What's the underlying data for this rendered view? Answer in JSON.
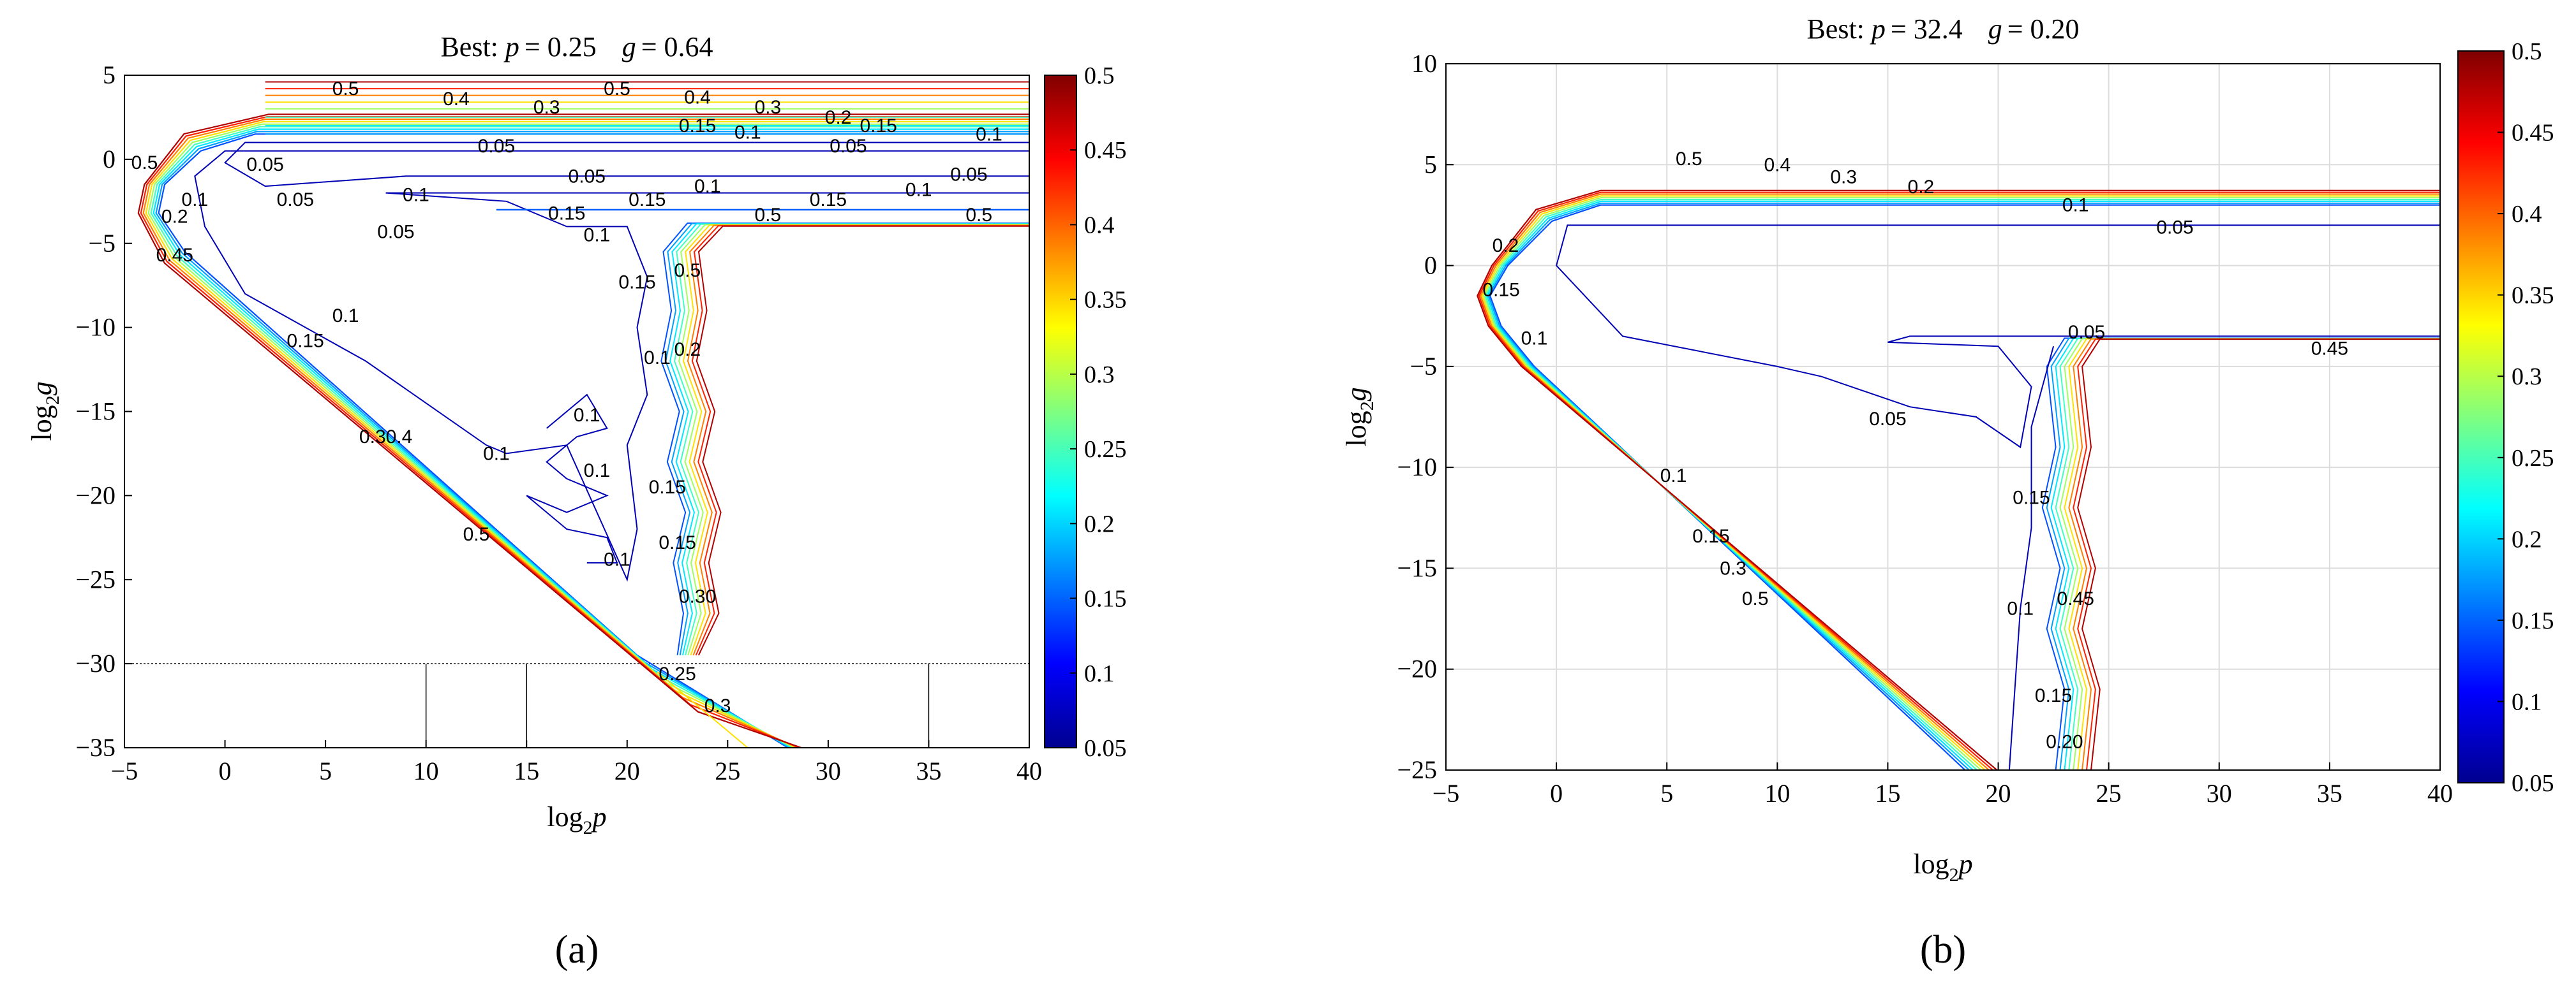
{
  "chart_data": [
    {
      "type": "contour",
      "panel": "(a)",
      "title_prefix": "Best: ",
      "title_p_label": "p",
      "title_p_value": "= 0.25",
      "title_g_label": "g",
      "title_g_value": "= 0.64",
      "xlabel": "log₂p",
      "ylabel": "log₂g",
      "xlim": [
        -5,
        40
      ],
      "ylim": [
        -35,
        5
      ],
      "xticks": [
        -5,
        0,
        5,
        10,
        15,
        20,
        25,
        30,
        35,
        40
      ],
      "yticks": [
        -35,
        -30,
        -25,
        -20,
        -15,
        -10,
        -5,
        0,
        5
      ],
      "grid": false,
      "colorbar": {
        "min": 0.05,
        "max": 0.5,
        "ticks": [
          "0.5",
          "0.45",
          "0.4",
          "0.35",
          "0.3",
          "0.25",
          "0.2",
          "0.15",
          "0.1",
          "0.05"
        ]
      },
      "contour_levels": [
        0.05,
        0.1,
        0.15,
        0.2,
        0.25,
        0.3,
        0.35,
        0.4,
        0.45,
        0.5
      ],
      "contour_labels": [
        {
          "text": "0.5",
          "x": 6,
          "y": 4.2
        },
        {
          "text": "0.4",
          "x": 11.5,
          "y": 3.6
        },
        {
          "text": "0.3",
          "x": 16,
          "y": 3.1
        },
        {
          "text": "0.5",
          "x": 19.5,
          "y": 4.2
        },
        {
          "text": "0.4",
          "x": 23.5,
          "y": 3.7
        },
        {
          "text": "0.3",
          "x": 27,
          "y": 3.1
        },
        {
          "text": "0.2",
          "x": 30.5,
          "y": 2.5
        },
        {
          "text": "0.15",
          "x": 32.5,
          "y": 2.0
        },
        {
          "text": "0.1",
          "x": 38,
          "y": 1.5
        },
        {
          "text": "0.15",
          "x": 23.5,
          "y": 2.0
        },
        {
          "text": "0.1",
          "x": 26,
          "y": 1.6
        },
        {
          "text": "0.05",
          "x": 13.5,
          "y": 0.8
        },
        {
          "text": "0.05",
          "x": 31,
          "y": 0.8
        },
        {
          "text": "0.05",
          "x": 37,
          "y": -0.9
        },
        {
          "text": "0.05",
          "x": 18,
          "y": -1.0
        },
        {
          "text": "0.05",
          "x": 2,
          "y": -0.3
        },
        {
          "text": "0.05",
          "x": 3.5,
          "y": -2.4
        },
        {
          "text": "0.1",
          "x": 24,
          "y": -1.6
        },
        {
          "text": "0.1",
          "x": 34.5,
          "y": -1.8
        },
        {
          "text": "0.15",
          "x": 30,
          "y": -2.4
        },
        {
          "text": "0.15",
          "x": 21,
          "y": -2.4
        },
        {
          "text": "0.5",
          "x": 27,
          "y": -3.3
        },
        {
          "text": "0.5",
          "x": 37.5,
          "y": -3.3
        },
        {
          "text": "0.1",
          "x": 9.5,
          "y": -2.1
        },
        {
          "text": "0.15",
          "x": 17,
          "y": -3.2
        },
        {
          "text": "0.1",
          "x": 18.5,
          "y": -4.5
        },
        {
          "text": "0.05",
          "x": 8.5,
          "y": -4.3
        },
        {
          "text": "0.5",
          "x": -4,
          "y": -0.2
        },
        {
          "text": "0.2",
          "x": -2.5,
          "y": -3.4
        },
        {
          "text": "0.1",
          "x": -1.5,
          "y": -2.4
        },
        {
          "text": "0.45",
          "x": -2.5,
          "y": -5.7
        },
        {
          "text": "0.1",
          "x": 6,
          "y": -9.3
        },
        {
          "text": "0.15",
          "x": 4,
          "y": -10.8
        },
        {
          "text": "0.15",
          "x": 20.5,
          "y": -7.3
        },
        {
          "text": "0.5",
          "x": 23,
          "y": -6.6
        },
        {
          "text": "0.1",
          "x": 21.5,
          "y": -11.8
        },
        {
          "text": "0.2",
          "x": 23,
          "y": -11.3
        },
        {
          "text": "0.1",
          "x": 18,
          "y": -15.2
        },
        {
          "text": "0.30.4",
          "x": 8,
          "y": -16.5
        },
        {
          "text": "0.1",
          "x": 13.5,
          "y": -17.5
        },
        {
          "text": "0.1",
          "x": 18.5,
          "y": -18.5
        },
        {
          "text": "0.15",
          "x": 22,
          "y": -19.5
        },
        {
          "text": "0.5",
          "x": 12.5,
          "y": -22.3
        },
        {
          "text": "0.15",
          "x": 22.5,
          "y": -22.8
        },
        {
          "text": "0.1",
          "x": 19.5,
          "y": -23.8
        },
        {
          "text": "0.30",
          "x": 23.5,
          "y": -26
        },
        {
          "text": "0.25",
          "x": 22.5,
          "y": -30.6
        },
        {
          "text": "0.3",
          "x": 24.5,
          "y": -32.5
        }
      ]
    },
    {
      "type": "contour",
      "panel": "(b)",
      "title_prefix": "Best: ",
      "title_p_label": "p",
      "title_p_value": "= 32.4",
      "title_g_label": "g",
      "title_g_value": "= 0.20",
      "xlabel": "log₂p",
      "ylabel": "log₂g",
      "xlim": [
        -5,
        40
      ],
      "ylim": [
        -25,
        10
      ],
      "xticks": [
        -5,
        0,
        5,
        10,
        15,
        20,
        25,
        30,
        35,
        40
      ],
      "yticks": [
        -25,
        -20,
        -15,
        -10,
        -5,
        0,
        5,
        10
      ],
      "grid": true,
      "colorbar": {
        "min": 0.05,
        "max": 0.5,
        "ticks": [
          "0.5",
          "0.45",
          "0.4",
          "0.35",
          "0.3",
          "0.25",
          "0.2",
          "0.15",
          "0.1",
          "0.05"
        ]
      },
      "contour_levels": [
        0.05,
        0.1,
        0.15,
        0.2,
        0.25,
        0.3,
        0.35,
        0.4,
        0.45,
        0.5
      ],
      "contour_labels": [
        {
          "text": "0.5",
          "x": 6,
          "y": 5.3
        },
        {
          "text": "0.4",
          "x": 10,
          "y": 5.0
        },
        {
          "text": "0.3",
          "x": 13,
          "y": 4.4
        },
        {
          "text": "0.2",
          "x": 16.5,
          "y": 3.9
        },
        {
          "text": "0.1",
          "x": 23.5,
          "y": 3.0
        },
        {
          "text": "0.05",
          "x": 28,
          "y": 1.9
        },
        {
          "text": "0.2",
          "x": -2.3,
          "y": 1.0
        },
        {
          "text": "0.15",
          "x": -2.5,
          "y": -1.2
        },
        {
          "text": "0.1",
          "x": -1,
          "y": -3.6
        },
        {
          "text": "0.05",
          "x": 24,
          "y": -3.3
        },
        {
          "text": "0.45",
          "x": 35,
          "y": -4.1
        },
        {
          "text": "0.05",
          "x": 15,
          "y": -7.6
        },
        {
          "text": "0.1",
          "x": 5.3,
          "y": -10.4
        },
        {
          "text": "0.15",
          "x": 7,
          "y": -13.4
        },
        {
          "text": "0.3",
          "x": 8,
          "y": -15
        },
        {
          "text": "0.5",
          "x": 9,
          "y": -16.5
        },
        {
          "text": "0.15",
          "x": 21.5,
          "y": -11.5
        },
        {
          "text": "0.45",
          "x": 23.5,
          "y": -16.5
        },
        {
          "text": "0.1",
          "x": 21,
          "y": -17
        },
        {
          "text": "0.15",
          "x": 22.5,
          "y": -21.3
        },
        {
          "text": "0.20",
          "x": 23,
          "y": -23.6
        }
      ]
    }
  ],
  "captions": [
    "(a)",
    "(b)"
  ]
}
